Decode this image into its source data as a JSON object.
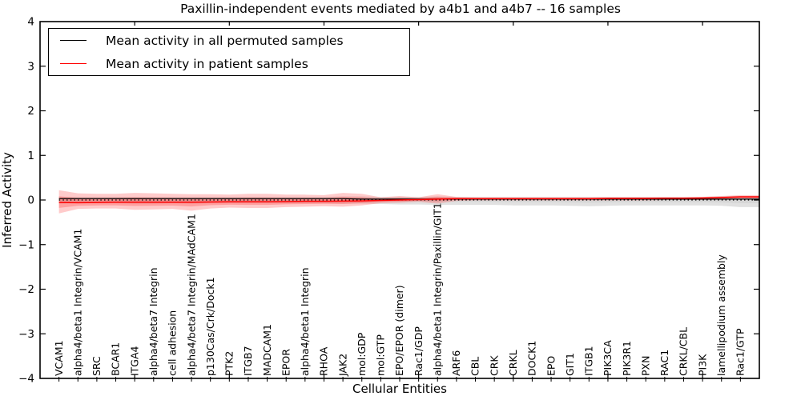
{
  "title": "Paxillin-independent events mediated by a4b1 and a4b7 -- 16 samples",
  "axes": {
    "xlabel": "Cellular Entities",
    "ylabel": "Inferred Activity",
    "y_tick_labels": [
      "4",
      "3",
      "2",
      "1",
      "0",
      "−1",
      "−2",
      "−3",
      "−4"
    ],
    "y_tick_values": [
      4,
      3,
      2,
      1,
      0,
      -1,
      -2,
      -3,
      -4
    ]
  },
  "legend": {
    "items": [
      {
        "label": "Mean activity in all permuted samples",
        "color": "#000000"
      },
      {
        "label": "Mean activity in patient samples",
        "color": "#ff0000"
      }
    ]
  },
  "chart_data": {
    "type": "line",
    "title": "Paxillin-independent events mediated by a4b1 and a4b7 -- 16 samples",
    "xlabel": "Cellular Entities",
    "ylabel": "Inferred Activity",
    "ylim": [
      -4,
      4
    ],
    "grid": false,
    "legend_position": "upper left",
    "x_major_ticks": [
      5,
      10,
      15,
      20,
      25,
      30,
      35
    ],
    "zero_line": {
      "style": "dotted",
      "y": 0,
      "color": "#000000"
    },
    "categories": [
      "VCAM1",
      "alpha4/beta1 Integrin/VCAM1",
      "SRC",
      "BCAR1",
      "ITGA4",
      "alpha4/beta7 Integrin",
      "cell adhesion",
      "alpha4/beta7 Integrin/MAdCAM1",
      "p130Cas/Crk/Dock1",
      "PTK2",
      "ITGB7",
      "MADCAM1",
      "EPOR",
      "alpha4/beta1 Integrin",
      "RHOA",
      "JAK2",
      "mol:GDP",
      "mol:GTP",
      "EPO/EPOR (dimer)",
      "Rac1/GDP",
      "alpha4/beta1 Integrin/Paxillin/GIT1",
      "ARF6",
      "CBL",
      "CRK",
      "CRKL",
      "DOCK1",
      "EPO",
      "GIT1",
      "ITGB1",
      "PIK3CA",
      "PIK3R1",
      "PXN",
      "RAC1",
      "CRKL/CBL",
      "PI3K",
      "lamellipodium assembly",
      "Rac1/GTP"
    ],
    "series": [
      {
        "name": "Mean activity in all permuted samples",
        "color": "#000000",
        "band_color": "#bdbdbd",
        "values": [
          0.03,
          0.03,
          0.03,
          0.03,
          0.03,
          0.03,
          0.03,
          0.03,
          0.03,
          0.03,
          0.03,
          0.03,
          0.03,
          0.03,
          0.03,
          0.03,
          0.02,
          0.02,
          0.02,
          0.02,
          0.02,
          0.02,
          0.02,
          0.02,
          0.02,
          0.02,
          0.02,
          0.02,
          0.02,
          0.02,
          0.02,
          0.02,
          0.02,
          0.02,
          0.02,
          0.02,
          0.02
        ],
        "band_upper": [
          0.07,
          0.07,
          0.07,
          0.07,
          0.07,
          0.07,
          0.07,
          0.07,
          0.07,
          0.07,
          0.07,
          0.07,
          0.07,
          0.07,
          0.07,
          0.08,
          0.08,
          0.07,
          0.07,
          0.07,
          0.08,
          0.07,
          0.07,
          0.07,
          0.07,
          0.07,
          0.07,
          0.07,
          0.07,
          0.07,
          0.07,
          0.07,
          0.07,
          0.07,
          0.07,
          0.08,
          0.09
        ],
        "band_lower": [
          -0.08,
          -0.07,
          -0.07,
          -0.07,
          -0.08,
          -0.08,
          -0.07,
          -0.08,
          -0.07,
          -0.07,
          -0.07,
          -0.07,
          -0.07,
          -0.07,
          -0.07,
          -0.08,
          -0.08,
          -0.09,
          -0.1,
          -0.1,
          -0.11,
          -0.11,
          -0.11,
          -0.11,
          -0.12,
          -0.12,
          -0.12,
          -0.13,
          -0.14,
          -0.13,
          -0.12,
          -0.12,
          -0.12,
          -0.12,
          -0.12,
          -0.13,
          -0.16
        ]
      },
      {
        "name": "Mean activity in patient samples",
        "color": "#ff0000",
        "band_color": "#ff4444",
        "values": [
          -0.055,
          -0.06,
          -0.055,
          -0.05,
          -0.05,
          -0.05,
          -0.05,
          -0.05,
          -0.045,
          -0.04,
          -0.04,
          -0.04,
          -0.035,
          -0.03,
          -0.03,
          -0.025,
          -0.02,
          -0.01,
          0.0,
          0.01,
          0.02,
          0.03,
          0.03,
          0.03,
          0.03,
          0.03,
          0.03,
          0.03,
          0.03,
          0.035,
          0.035,
          0.035,
          0.04,
          0.04,
          0.045,
          0.055,
          0.07
        ],
        "band_upper": [
          0.22,
          0.15,
          0.14,
          0.14,
          0.16,
          0.15,
          0.14,
          0.13,
          0.13,
          0.12,
          0.14,
          0.14,
          0.12,
          0.12,
          0.11,
          0.16,
          0.14,
          0.06,
          0.09,
          0.06,
          0.13,
          0.07,
          0.06,
          0.06,
          0.06,
          0.06,
          0.06,
          0.06,
          0.06,
          0.06,
          0.06,
          0.06,
          0.06,
          0.06,
          0.07,
          0.09,
          0.11
        ],
        "band_lower": [
          -0.3,
          -0.2,
          -0.19,
          -0.19,
          -0.22,
          -0.21,
          -0.2,
          -0.24,
          -0.19,
          -0.17,
          -0.18,
          -0.18,
          -0.16,
          -0.15,
          -0.14,
          -0.15,
          -0.12,
          -0.07,
          -0.06,
          -0.04,
          -0.08,
          -0.02,
          -0.01,
          -0.01,
          -0.01,
          -0.01,
          -0.01,
          -0.01,
          -0.01,
          -0.01,
          -0.01,
          -0.01,
          0.0,
          0.0,
          0.0,
          0.01,
          0.03
        ]
      }
    ]
  }
}
